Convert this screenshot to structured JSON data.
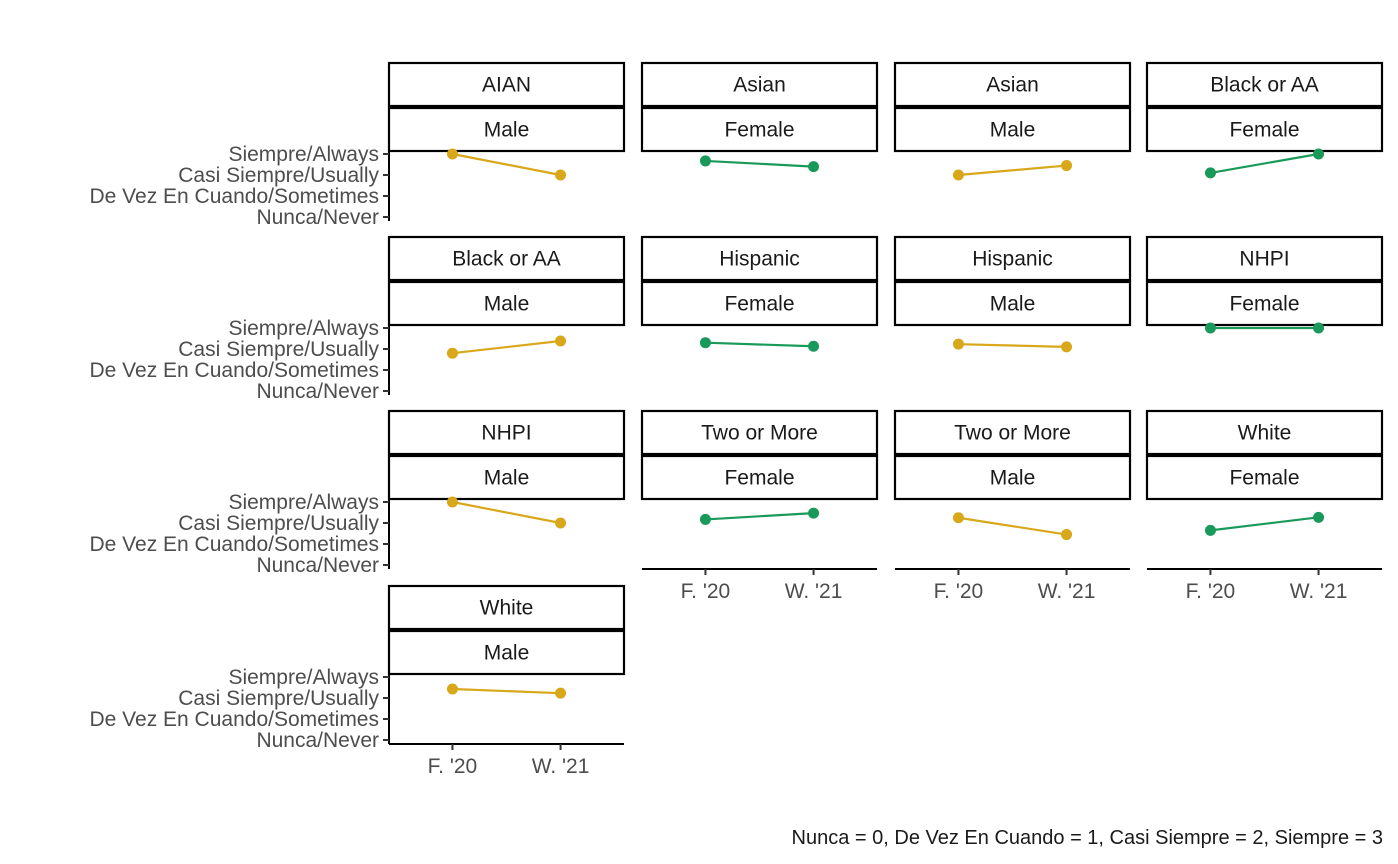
{
  "chart_data": {
    "type": "line",
    "caption": "Nunca = 0, De Vez En Cuando = 1, Casi Siempre = 2, Siempre = 3",
    "x_ticks": [
      "F. '20",
      "W. '21"
    ],
    "y_ticks": [
      "Nunca/Never",
      "De Vez En Cuando/Sometimes",
      "Casi Siempre/Usually",
      "Siempre/Always"
    ],
    "ylim": [
      0,
      3
    ],
    "colors": {
      "Male": "#d9a71a",
      "Female": "#1a9a5a"
    },
    "panels": [
      {
        "group": "AIAN",
        "gender": "Male",
        "values": [
          3.0,
          2.0
        ]
      },
      {
        "group": "Asian",
        "gender": "Female",
        "values": [
          2.67,
          2.4
        ]
      },
      {
        "group": "Asian",
        "gender": "Male",
        "values": [
          2.0,
          2.45
        ]
      },
      {
        "group": "Black or AA",
        "gender": "Female",
        "values": [
          2.1,
          3.0
        ]
      },
      {
        "group": "Black or AA",
        "gender": "Male",
        "values": [
          1.8,
          2.38
        ]
      },
      {
        "group": "Hispanic",
        "gender": "Female",
        "values": [
          2.3,
          2.13
        ]
      },
      {
        "group": "Hispanic",
        "gender": "Male",
        "values": [
          2.23,
          2.1
        ]
      },
      {
        "group": "NHPI",
        "gender": "Female",
        "values": [
          3.0,
          3.0
        ]
      },
      {
        "group": "NHPI",
        "gender": "Male",
        "values": [
          3.0,
          2.0
        ]
      },
      {
        "group": "Two or More",
        "gender": "Female",
        "values": [
          2.17,
          2.47
        ]
      },
      {
        "group": "Two or More",
        "gender": "Male",
        "values": [
          2.25,
          1.45
        ]
      },
      {
        "group": "White",
        "gender": "Female",
        "values": [
          1.65,
          2.27
        ]
      },
      {
        "group": "White",
        "gender": "Male",
        "values": [
          2.43,
          2.23
        ]
      }
    ]
  }
}
